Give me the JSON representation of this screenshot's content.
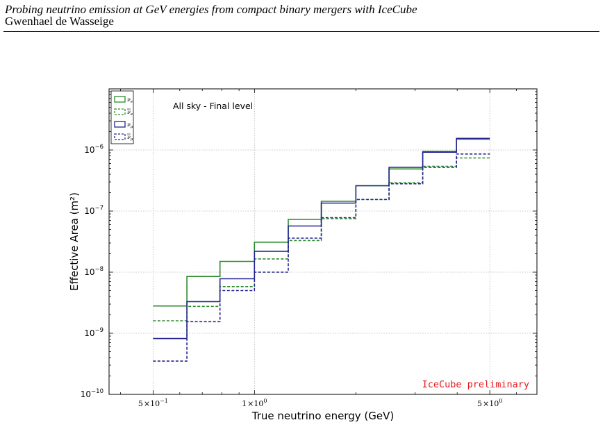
{
  "header": {
    "title": "Probing neutrino emission at GeV energies from compact binary mergers with IceCube",
    "author": "Gwenhael de Wasseige"
  },
  "chart_data": {
    "type": "line",
    "step": true,
    "xscale": "log",
    "yscale": "log",
    "xlabel": "True neutrino energy (GeV)",
    "ylabel": "Effective Area (m²)",
    "xlim": [
      0.37,
      6.9
    ],
    "ylim": [
      1e-10,
      1e-05
    ],
    "grid": true,
    "legend_position": "top-left",
    "annotation": "All sky - Final level",
    "watermark": "IceCube preliminary",
    "watermark_color": "#e8151b",
    "x_ticks": [
      {
        "value": 0.5,
        "mant": "5",
        "exp": "−1"
      },
      {
        "value": 1.0,
        "mant": "1",
        "exp": "0"
      },
      {
        "value": 5.0,
        "mant": "5",
        "exp": "0"
      }
    ],
    "y_ticks": [
      {
        "value": 1e-10,
        "exp": "−10"
      },
      {
        "value": 1e-09,
        "exp": "−9"
      },
      {
        "value": 1e-08,
        "exp": "−8"
      },
      {
        "value": 1e-07,
        "exp": "−7"
      },
      {
        "value": 1e-06,
        "exp": "−6"
      }
    ],
    "bin_edges": [
      0.5,
      0.63,
      0.79,
      1.0,
      1.26,
      1.58,
      2.0,
      2.51,
      3.16,
      3.98,
      5.0
    ],
    "series": [
      {
        "label_base": "ν",
        "label_sub": "e",
        "bar": false,
        "color": "#2a8a2a",
        "dash": false,
        "values": [
          2.8e-09,
          8.5e-09,
          1.5e-08,
          3.1e-08,
          7.3e-08,
          1.45e-07,
          2.6e-07,
          4.9e-07,
          9.5e-07,
          1.5e-06
        ]
      },
      {
        "label_base": "ν",
        "label_sub": "e",
        "bar": true,
        "color": "#2a8a2a",
        "dash": true,
        "values": [
          1.6e-09,
          2.75e-09,
          5.8e-09,
          1.65e-08,
          3.3e-08,
          7.5e-08,
          1.55e-07,
          2.9e-07,
          5.4e-07,
          7.4e-07
        ]
      },
      {
        "label_base": "ν",
        "label_sub": "μ",
        "bar": false,
        "color": "#23238e",
        "dash": false,
        "values": [
          8.2e-10,
          3.3e-09,
          7.8e-09,
          2.2e-08,
          5.7e-08,
          1.35e-07,
          2.6e-07,
          5.2e-07,
          9.2e-07,
          1.55e-06
        ]
      },
      {
        "label_base": "ν",
        "label_sub": "μ",
        "bar": true,
        "color": "#23238e",
        "dash": true,
        "values": [
          3.5e-10,
          1.55e-09,
          5e-09,
          1e-08,
          3.6e-08,
          7.8e-08,
          1.55e-07,
          2.8e-07,
          5.2e-07,
          8.6e-07
        ]
      }
    ]
  }
}
